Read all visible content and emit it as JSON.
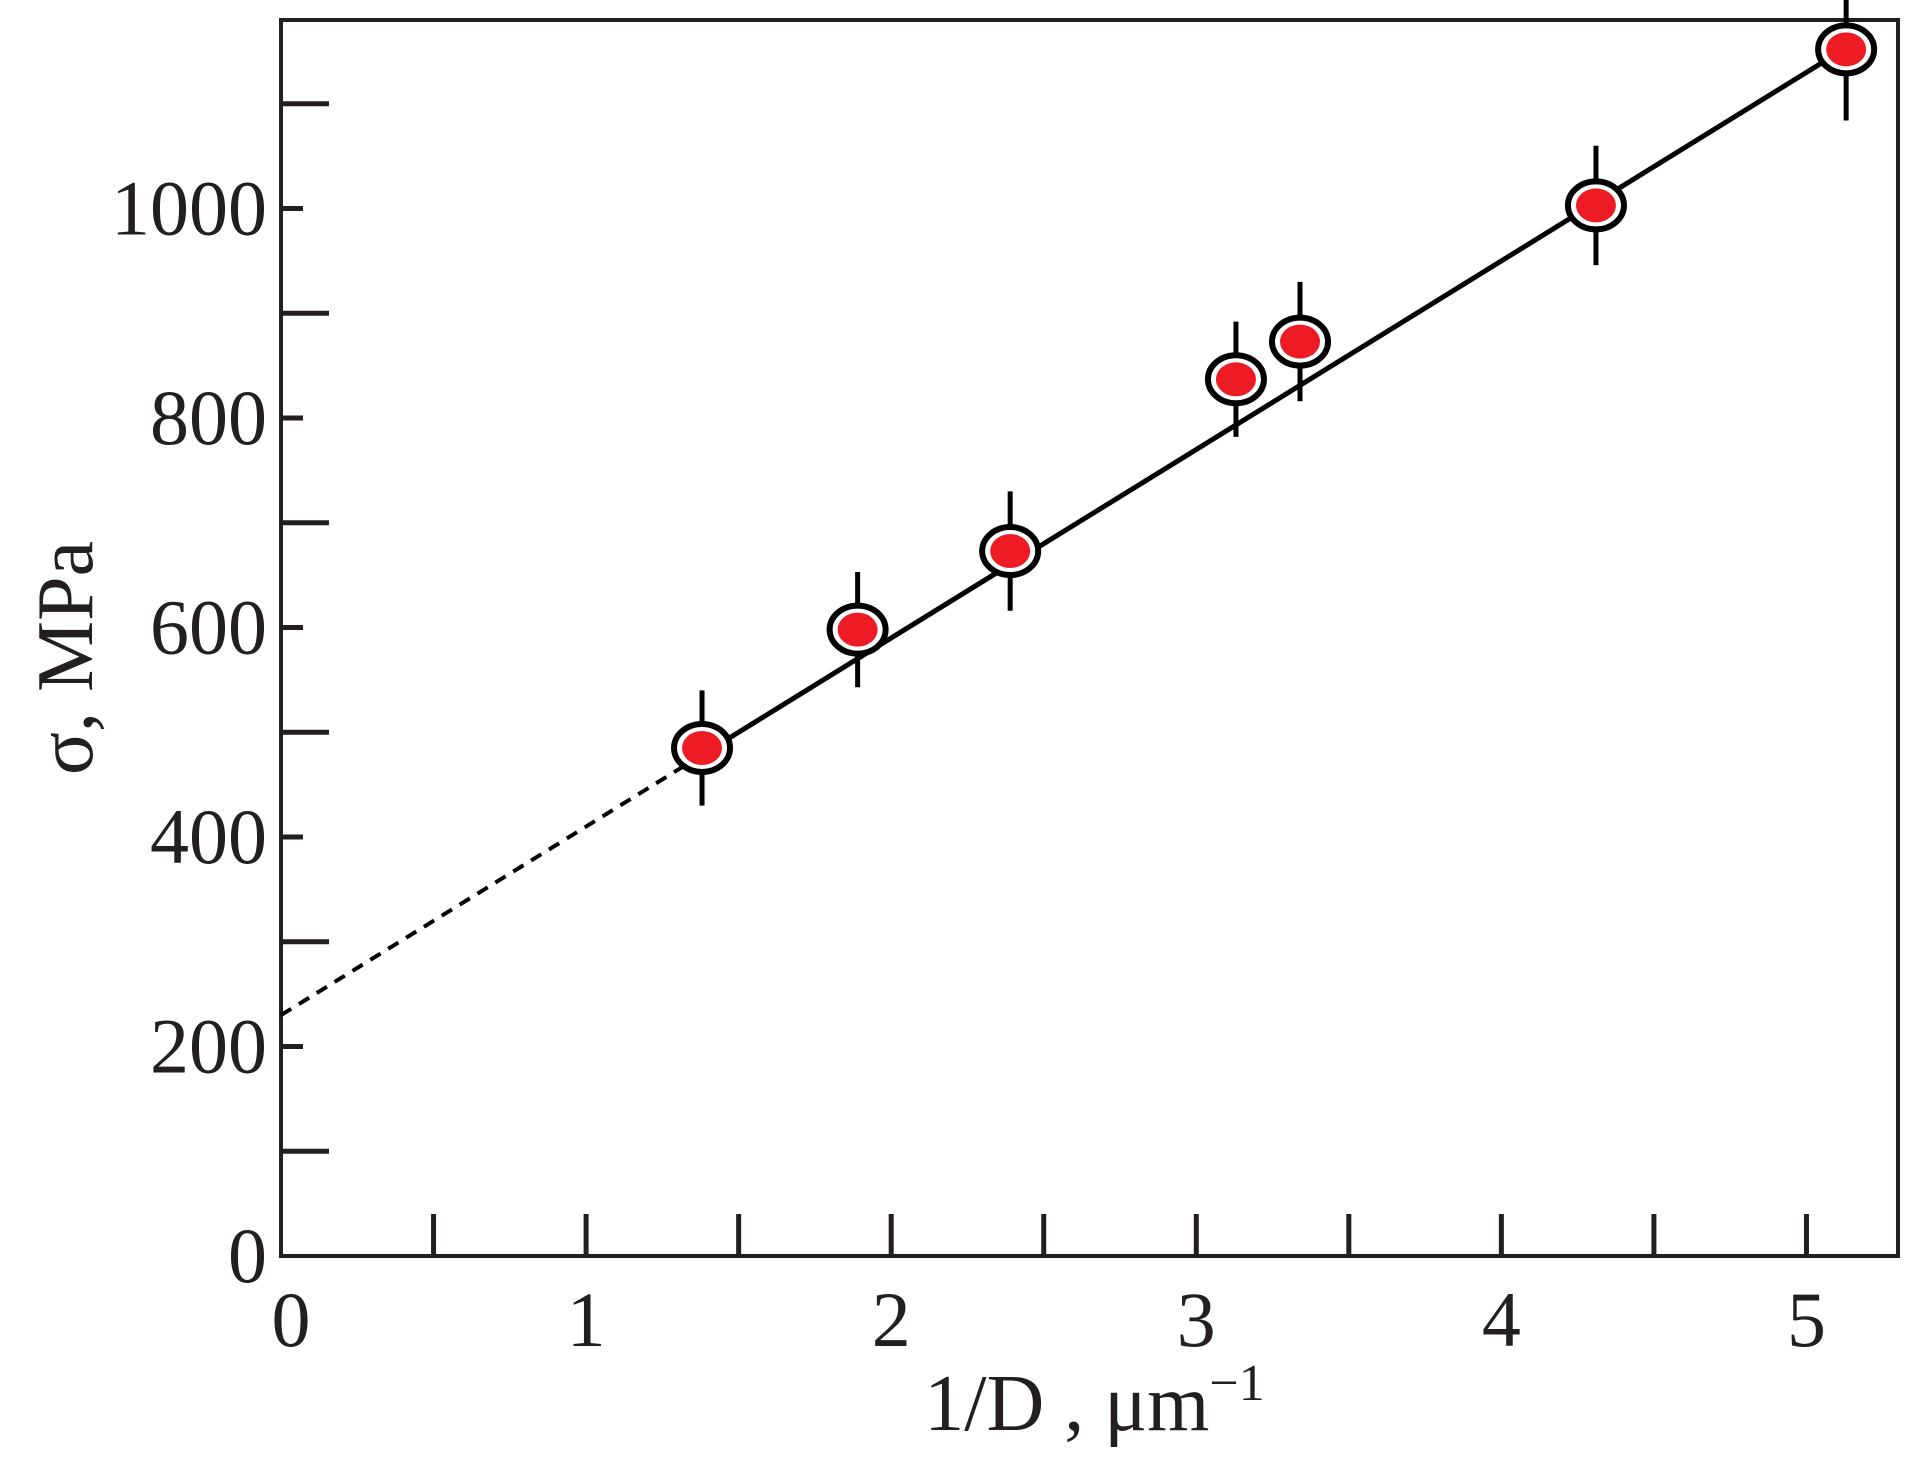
{
  "chart_data": {
    "type": "scatter",
    "title": "",
    "xlabel": "1/D , μm",
    "xlabel_superscript": "−1",
    "ylabel": "σ, MPa",
    "xlim": [
      0,
      5.3
    ],
    "ylim": [
      0,
      1180
    ],
    "x_ticks": [
      0,
      1,
      2,
      3,
      4,
      5
    ],
    "x_minor_ticks": [
      0.5,
      1.5,
      2.5,
      3.5,
      4.5
    ],
    "y_ticks": [
      0,
      200,
      400,
      600,
      800,
      1000
    ],
    "y_minor_ticks": [
      100,
      300,
      500,
      700,
      900,
      1100
    ],
    "grid": false,
    "series": [
      {
        "points": [
          {
            "x": 1.38,
            "y": 485,
            "err": 55
          },
          {
            "x": 1.89,
            "y": 598,
            "err": 55
          },
          {
            "x": 2.39,
            "y": 673,
            "err": 57
          },
          {
            "x": 3.13,
            "y": 837,
            "err": 55
          },
          {
            "x": 3.34,
            "y": 873,
            "err": 57
          },
          {
            "x": 4.31,
            "y": 1003,
            "err": 57
          },
          {
            "x": 5.13,
            "y": 1152,
            "err": 68
          }
        ],
        "marker_fill": "#ed1c24",
        "marker_edge": "#000000"
      }
    ],
    "fit_line": {
      "slope": 180,
      "intercept": 230,
      "dashed_range": [
        0,
        1.35
      ],
      "solid_range": [
        1.35,
        5.13
      ]
    }
  }
}
